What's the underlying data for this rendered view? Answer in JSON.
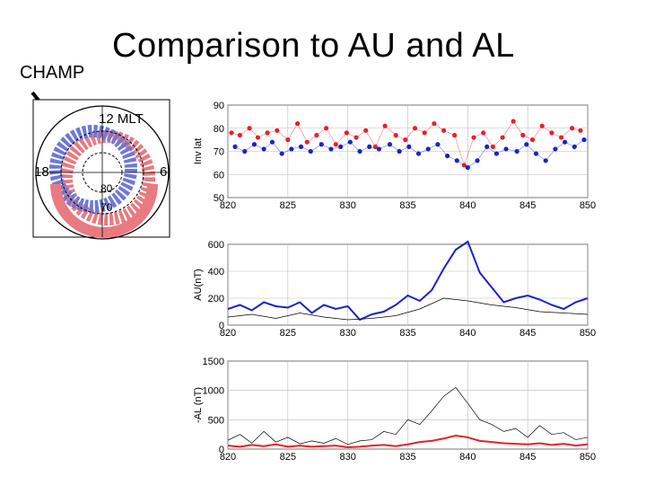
{
  "header": {
    "title": "Comparison to AU and AL",
    "side_label": "CHAMP"
  },
  "dial": {
    "top_label": "12 MLT",
    "left_label": "18",
    "right_label": "6",
    "ring_inner_label": "80",
    "ring_outer_label": "70"
  },
  "colors": {
    "red": "#e8202a",
    "blue": "#1b22c8",
    "black": "#000000",
    "pole_red": "#e87a80",
    "pole_blue": "#6e78d8"
  },
  "chart_data": [
    {
      "type": "scatter",
      "ylabel": "Inv lat",
      "xlim": [
        820,
        850
      ],
      "ylim": [
        50,
        90
      ],
      "xticks": [
        "820",
        "825",
        "830",
        "835",
        "840",
        "845",
        "850"
      ],
      "yticks": [
        "50",
        "60",
        "70",
        "80",
        "90"
      ],
      "series": [
        {
          "color": "red",
          "x": [
            820.3,
            821.0,
            821.8,
            822.5,
            823.3,
            824.1,
            825.0,
            825.8,
            826.6,
            827.4,
            828.2,
            829.0,
            829.9,
            830.7,
            831.5,
            832.3,
            833.1,
            834.0,
            834.8,
            835.6,
            836.4,
            837.2,
            838.0,
            838.9,
            839.7,
            840.5,
            841.3,
            842.1,
            842.9,
            843.8,
            844.6,
            845.4,
            846.2,
            847.0,
            847.8,
            848.7,
            849.4
          ],
          "y": [
            78,
            77,
            80,
            76,
            78,
            79,
            75,
            82,
            74,
            77,
            80,
            73,
            78,
            76,
            79,
            72,
            81,
            77,
            75,
            80,
            78,
            82,
            79,
            77,
            64,
            76,
            78,
            72,
            76,
            83,
            77,
            75,
            81,
            78,
            76,
            80,
            79
          ]
        },
        {
          "color": "blue",
          "x": [
            820.6,
            821.4,
            822.2,
            823.0,
            823.7,
            824.5,
            825.3,
            826.1,
            826.9,
            827.8,
            828.6,
            829.4,
            830.2,
            831.0,
            831.8,
            832.6,
            833.5,
            834.3,
            835.1,
            835.9,
            836.7,
            837.5,
            838.3,
            839.1,
            840.0,
            840.8,
            841.6,
            842.4,
            843.2,
            844.1,
            844.9,
            845.7,
            846.5,
            847.3,
            848.1,
            848.9,
            849.7
          ],
          "y": [
            72,
            70,
            73,
            71,
            74,
            69,
            71,
            72,
            70,
            73,
            71,
            72,
            74,
            70,
            72,
            71,
            73,
            70,
            72,
            69,
            71,
            73,
            68,
            66,
            63,
            66,
            72,
            69,
            71,
            70,
            73,
            69,
            66,
            71,
            74,
            72,
            75
          ]
        }
      ]
    },
    {
      "type": "line",
      "ylabel": "AU(nT)",
      "xlim": [
        820,
        850
      ],
      "ylim": [
        0,
        600
      ],
      "xticks": [
        "820",
        "825",
        "830",
        "835",
        "840",
        "845",
        "850"
      ],
      "yticks": [
        "0",
        "200",
        "400",
        "600"
      ],
      "series": [
        {
          "color": "blue",
          "x": [
            820,
            821,
            822,
            823,
            824,
            825,
            826,
            827,
            828,
            829,
            830,
            831,
            832,
            833,
            834,
            835,
            836,
            837,
            838,
            839,
            840,
            841,
            842,
            843,
            844,
            845,
            846,
            847,
            848,
            849,
            850
          ],
          "y": [
            120,
            150,
            110,
            170,
            140,
            130,
            170,
            90,
            150,
            120,
            140,
            40,
            80,
            100,
            150,
            220,
            180,
            260,
            420,
            560,
            620,
            390,
            280,
            170,
            200,
            220,
            190,
            150,
            120,
            170,
            200
          ]
        },
        {
          "color": "black",
          "x": [
            820,
            822,
            824,
            826,
            828,
            830,
            832,
            834,
            836,
            838,
            840,
            842,
            844,
            846,
            848,
            850
          ],
          "y": [
            60,
            80,
            50,
            90,
            60,
            40,
            50,
            70,
            120,
            200,
            180,
            150,
            130,
            100,
            90,
            80
          ]
        }
      ]
    },
    {
      "type": "line",
      "ylabel": "-AL (nT)",
      "xlim": [
        820,
        850
      ],
      "ylim": [
        0,
        1500
      ],
      "xticks": [
        "820",
        "825",
        "830",
        "835",
        "840",
        "845",
        "850"
      ],
      "yticks": [
        "0",
        "500",
        "1000",
        "1500"
      ],
      "series": [
        {
          "color": "red",
          "x": [
            820,
            821,
            822,
            823,
            824,
            825,
            826,
            827,
            828,
            829,
            830,
            831,
            832,
            833,
            834,
            835,
            836,
            837,
            838,
            839,
            840,
            841,
            842,
            843,
            844,
            845,
            846,
            847,
            848,
            849,
            850
          ],
          "y": [
            60,
            40,
            70,
            50,
            80,
            40,
            60,
            40,
            50,
            60,
            30,
            40,
            60,
            70,
            50,
            80,
            120,
            140,
            180,
            230,
            200,
            140,
            120,
            100,
            90,
            80,
            100,
            70,
            90,
            60,
            80
          ]
        },
        {
          "color": "black",
          "x": [
            820,
            821,
            822,
            823,
            824,
            825,
            826,
            827,
            828,
            829,
            830,
            831,
            832,
            833,
            834,
            835,
            836,
            837,
            838,
            839,
            840,
            841,
            842,
            843,
            844,
            845,
            846,
            847,
            848,
            849,
            850
          ],
          "y": [
            150,
            250,
            100,
            300,
            120,
            200,
            90,
            140,
            100,
            180,
            80,
            140,
            160,
            300,
            250,
            500,
            420,
            650,
            900,
            1050,
            780,
            500,
            420,
            300,
            350,
            200,
            400,
            250,
            280,
            160,
            200
          ]
        }
      ]
    }
  ]
}
